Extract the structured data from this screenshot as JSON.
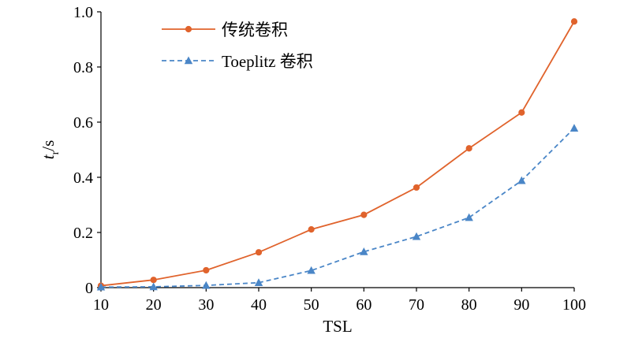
{
  "chart_data": {
    "type": "line",
    "xlabel": "TSL",
    "ylabel": "t_r/s",
    "ylabel_main": "t",
    "ylabel_sub": "r",
    "ylabel_unit": "/s",
    "xlim": [
      10,
      100
    ],
    "ylim": [
      0,
      1.0
    ],
    "x": [
      10,
      20,
      30,
      40,
      50,
      60,
      70,
      80,
      90,
      100
    ],
    "x_tick_labels": [
      "10",
      "20",
      "30",
      "40",
      "50",
      "60",
      "70",
      "80",
      "90",
      "100"
    ],
    "y_ticks": [
      0,
      0.2,
      0.4,
      0.6,
      0.8,
      1.0
    ],
    "y_tick_labels": [
      "0",
      "0.2",
      "0.4",
      "0.6",
      "0.8",
      "1.0"
    ],
    "grid": false,
    "legend_position": "top-left",
    "series": [
      {
        "name": "传统卷积",
        "color": "#e0632c",
        "line_style": "solid",
        "marker": "circle",
        "values": [
          0.007,
          0.028,
          0.063,
          0.128,
          0.211,
          0.264,
          0.363,
          0.505,
          0.635,
          0.965
        ]
      },
      {
        "name": "Toeplitz 卷积",
        "color": "#4a86c7",
        "line_style": "dashed",
        "marker": "triangle",
        "values": [
          0.002,
          0.003,
          0.008,
          0.018,
          0.062,
          0.13,
          0.185,
          0.254,
          0.388,
          0.578
        ]
      }
    ]
  }
}
